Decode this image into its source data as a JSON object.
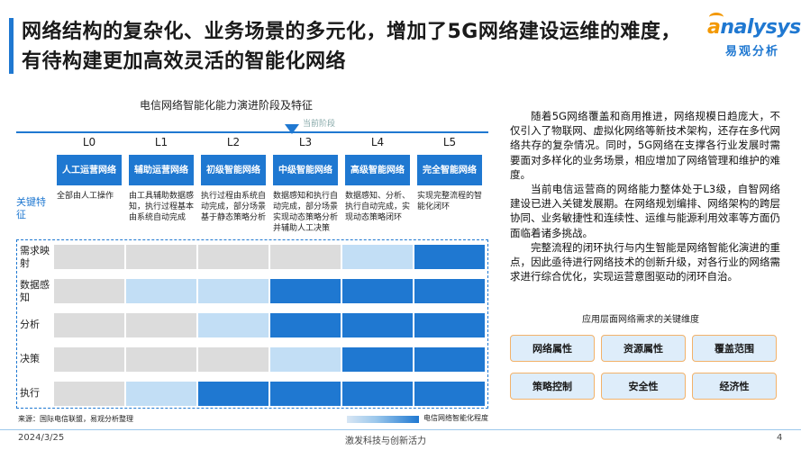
{
  "title": "网络结构的复杂化、业务场景的多元化，增加了5G网络建设运维的难度，有待构建更加高效灵活的智能化网络",
  "logo": {
    "word_accent": "a",
    "word_rest": "nalysys",
    "sub": "易观分析"
  },
  "chart": {
    "title": "电信网络智能化能力演进阶段及特征",
    "current_stage_label": "当前阶段",
    "feature_label": "关键特征",
    "levels": [
      {
        "level": "L0",
        "capability": "人工运营网络",
        "feature": "全部由人工操作"
      },
      {
        "level": "L1",
        "capability": "辅助运营网络",
        "feature": "由工具辅助数据感知，执行过程基本由系统自动完成"
      },
      {
        "level": "L2",
        "capability": "初级智能网络",
        "feature": "执行过程由系统自动完成，部分场景基于静态策略分析"
      },
      {
        "level": "L3",
        "capability": "中级智能网络",
        "feature": "数据感知和执行自动完成，部分场景实现动态策略分析并辅助人工决策"
      },
      {
        "level": "L4",
        "capability": "高级智能网络",
        "feature": "数据感知、分析、执行自动完成，实现动态策略闭环"
      },
      {
        "level": "L5",
        "capability": "完全智能网络",
        "feature": "实现完整流程的智能化闭环"
      }
    ],
    "rows": [
      {
        "label": "需求映射",
        "levels": [
          0,
          0,
          0,
          0,
          1,
          2
        ]
      },
      {
        "label": "数据感知",
        "levels": [
          0,
          1,
          1,
          2,
          2,
          2
        ]
      },
      {
        "label": "分析",
        "levels": [
          0,
          0,
          1,
          2,
          2,
          2
        ]
      },
      {
        "label": "决策",
        "levels": [
          0,
          0,
          0,
          1,
          2,
          2
        ]
      },
      {
        "label": "执行",
        "levels": [
          0,
          1,
          2,
          2,
          2,
          2
        ]
      }
    ],
    "level_colors": [
      "#dcdcdc",
      "#c2def5",
      "#1f78d1"
    ],
    "legend": "电信网络智能化程度",
    "source": "来源：国际电信联盟，易观分析整理"
  },
  "body_paragraphs": [
    "随着5G网络覆盖和商用推进，网络规模日趋庞大，不仅引入了物联网、虚拟化网络等新技术架构，还存在多代网络共存的复杂情况。同时，5G网络在支撑各行业发展时需要面对多样化的业务场景，相应增加了网络管理和维护的难度。",
    "当前电信运营商的网络能力整体处于L3级，自智网络建设已进入关键发展期。在网络规划编排、网络架构的跨层协同、业务敏捷性和连续性、运维与能源利用效率等方面仍面临着诸多挑战。",
    "完整流程的闭环执行与内生智能是网络智能化演进的重点，因此亟待进行网络技术的创新升级，对各行业的网络需求进行综合优化，实现运营意图驱动的闭环自治。"
  ],
  "dimensions": {
    "title": "应用层面网络需求的关键维度",
    "items": [
      "网络属性",
      "资源属性",
      "覆盖范围",
      "策略控制",
      "安全性",
      "经济性"
    ]
  },
  "footer": {
    "date": "2024/3/25",
    "center": "激发科技与创新活力",
    "page": "4"
  }
}
